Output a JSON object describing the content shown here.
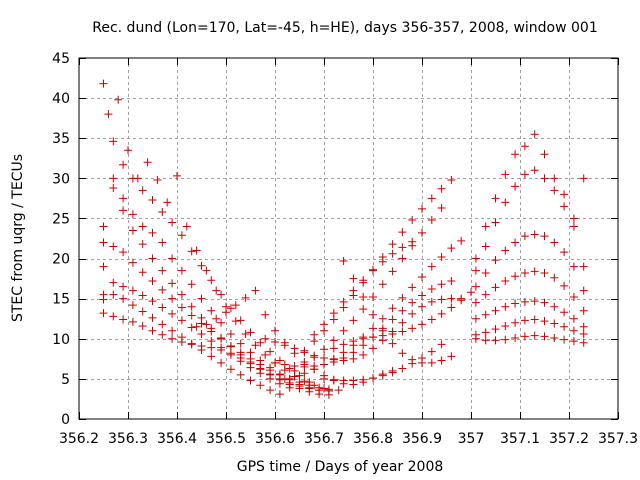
{
  "chart_data": {
    "type": "scatter",
    "title": "Rec. dund (Lon=170, Lat=-45, h=HE), days 356-357, 2008, window 001",
    "xlabel": "GPS time / Days of year 2008",
    "ylabel": "STEC from uqrg / TECUs",
    "xlim": [
      356.2,
      357.3
    ],
    "ylim": [
      0,
      45
    ],
    "xticks": [
      356.2,
      356.3,
      356.4,
      356.5,
      356.6,
      356.7,
      356.8,
      356.9,
      357.0,
      357.1,
      357.2,
      357.3
    ],
    "xtick_labels": [
      "356.2",
      "356.3",
      "356.4",
      "356.5",
      "356.6",
      "356.7",
      "356.8",
      "356.9",
      "357",
      "357.1",
      "357.2",
      "357.3"
    ],
    "yticks": [
      0,
      5,
      10,
      15,
      20,
      25,
      30,
      35,
      40,
      45
    ],
    "ytick_labels": [
      "0",
      "5",
      "10",
      "15",
      "20",
      "25",
      "30",
      "35",
      "40",
      "45"
    ],
    "grid": true,
    "marker": "+",
    "color": "#cc0000",
    "tracks": [
      {
        "x": [
          356.25,
          356.27,
          356.29,
          356.31,
          356.33,
          356.35,
          356.37,
          356.39,
          356.41,
          356.43,
          356.45,
          356.47,
          356.49,
          356.51,
          356.53,
          356.55,
          356.57,
          356.59,
          356.61,
          356.63,
          356.65,
          356.67
        ],
        "y": [
          41.8,
          34.6,
          31.7,
          30.0,
          28.5,
          27.3,
          25.8,
          24.5,
          22.9,
          20.9,
          19.1,
          17.3,
          15.5,
          13.8,
          12.3,
          10.8,
          9.5,
          8.4,
          7.3,
          6.3,
          5.4,
          4.6
        ]
      },
      {
        "x": [
          356.25,
          356.27,
          356.29,
          356.31,
          356.33,
          356.35,
          356.37,
          356.39,
          356.41,
          356.43,
          356.45,
          356.47,
          356.49,
          356.51,
          356.53,
          356.55,
          356.57,
          356.59,
          356.61,
          356.63,
          356.65,
          356.67,
          356.69,
          356.71,
          356.73
        ],
        "y": [
          24.0,
          30.0,
          27.5,
          25.5,
          24.0,
          23.2,
          22.0,
          20.0,
          18.5,
          16.8,
          15.0,
          13.5,
          12.0,
          10.6,
          9.4,
          8.3,
          7.3,
          6.4,
          5.6,
          4.9,
          4.3,
          3.9,
          3.6,
          3.5,
          3.6
        ]
      },
      {
        "x": [
          356.25,
          356.27,
          356.29,
          356.31,
          356.33,
          356.35,
          356.37,
          356.39,
          356.41,
          356.43,
          356.45,
          356.47,
          356.49,
          356.51,
          356.53,
          356.55,
          356.57,
          356.59,
          356.61,
          356.63,
          356.65,
          356.67,
          356.69,
          356.71
        ],
        "y": [
          22.0,
          28.8,
          26.0,
          23.5,
          21.8,
          20.0,
          18.5,
          16.9,
          15.5,
          14.0,
          12.6,
          11.3,
          10.1,
          9.0,
          8.0,
          7.1,
          6.3,
          5.6,
          5.0,
          4.5,
          4.1,
          3.8,
          3.6,
          3.5
        ]
      },
      {
        "x": [
          356.25,
          356.27,
          356.29,
          356.31,
          356.33,
          356.35,
          356.37,
          356.39,
          356.41,
          356.43,
          356.45,
          356.47,
          356.49,
          356.51,
          356.53,
          356.55,
          356.57,
          356.59,
          356.61,
          356.63,
          356.65,
          356.67,
          356.69,
          356.71
        ],
        "y": [
          19.0,
          21.5,
          20.8,
          19.5,
          18.3,
          17.2,
          16.1,
          15.0,
          13.9,
          12.9,
          11.9,
          10.9,
          10.0,
          9.1,
          8.3,
          7.5,
          6.8,
          6.1,
          5.5,
          5.0,
          4.6,
          4.2,
          3.9,
          3.7
        ]
      },
      {
        "x": [
          356.25,
          356.27,
          356.29,
          356.31,
          356.33,
          356.35,
          356.37,
          356.39,
          356.41,
          356.43,
          356.45,
          356.47,
          356.49,
          356.51,
          356.53,
          356.55,
          356.57,
          356.59,
          356.61,
          356.63
        ],
        "y": [
          15.5,
          17.0,
          16.5,
          16.0,
          15.4,
          14.7,
          13.9,
          13.1,
          12.3,
          11.4,
          10.6,
          9.7,
          8.9,
          8.0,
          7.2,
          6.4,
          5.7,
          5.0,
          4.4,
          3.9
        ]
      },
      {
        "x": [
          356.25,
          356.27,
          356.29,
          356.31,
          356.33,
          356.35,
          356.37,
          356.39,
          356.41,
          356.43,
          356.45,
          356.47,
          356.49,
          356.51,
          356.53,
          356.55,
          356.57,
          356.59,
          356.61
        ],
        "y": [
          14.9,
          15.5,
          15.0,
          14.2,
          13.4,
          12.6,
          11.8,
          11.0,
          10.2,
          9.4,
          8.6,
          7.8,
          7.0,
          6.2,
          5.5,
          4.8,
          4.2,
          3.6,
          3.1
        ]
      },
      {
        "x": [
          356.25,
          356.27,
          356.29,
          356.31,
          356.33,
          356.35,
          356.37,
          356.39,
          356.41,
          356.43,
          356.45,
          356.47,
          356.49,
          356.51,
          356.53,
          356.55,
          356.57,
          356.59,
          356.61,
          356.63,
          356.65,
          356.67,
          356.69,
          356.71
        ],
        "y": [
          13.2,
          12.8,
          12.4,
          12.1,
          11.6,
          11.0,
          10.5,
          10.0,
          9.6,
          9.3,
          9.1,
          8.9,
          8.6,
          8.2,
          7.6,
          6.9,
          6.2,
          5.5,
          4.9,
          4.3,
          3.8,
          3.4,
          3.1,
          3.0
        ]
      },
      {
        "x": [
          356.26,
          356.28,
          356.3,
          356.32,
          356.34,
          356.36,
          356.38,
          356.4,
          356.42,
          356.44,
          356.46,
          356.48,
          356.5,
          356.52,
          356.54,
          356.56,
          356.58,
          356.6,
          356.62,
          356.64,
          356.66,
          356.68,
          356.7
        ],
        "y": [
          38.0,
          39.8,
          33.5,
          30.0,
          32.0,
          29.8,
          27.0,
          30.3,
          24.0,
          21.0,
          18.5,
          16.0,
          14.0,
          12.2,
          10.6,
          9.2,
          8.0,
          7.0,
          6.1,
          5.3,
          4.7,
          4.2,
          3.8
        ]
      },
      {
        "x": [
          356.44,
          356.46,
          356.48,
          356.5,
          356.52,
          356.54,
          356.56,
          356.58,
          356.6,
          356.62,
          356.64,
          356.66,
          356.68,
          356.7,
          356.72,
          356.74,
          356.76,
          356.78,
          356.8,
          356.82,
          356.84
        ],
        "y": [
          11.5,
          11.8,
          12.5,
          13.3,
          14.2,
          15.1,
          16.0,
          13.0,
          11.0,
          9.5,
          8.2,
          7.1,
          6.2,
          5.4,
          4.8,
          4.4,
          4.3,
          4.6,
          5.1,
          5.6,
          6.0
        ]
      },
      {
        "x": [
          356.58,
          356.6,
          356.62,
          356.64,
          356.66,
          356.68,
          356.7,
          356.72,
          356.74,
          356.76,
          356.78,
          356.8,
          356.82,
          356.84,
          356.86,
          356.88,
          356.9,
          356.92,
          356.94,
          356.96,
          356.98
        ],
        "y": [
          10.0,
          9.6,
          9.2,
          8.8,
          8.3,
          7.9,
          7.6,
          7.4,
          7.3,
          7.5,
          8.0,
          8.8,
          9.8,
          10.9,
          12.0,
          13.1,
          14.0,
          14.6,
          14.9,
          15.0,
          15.0
        ]
      },
      {
        "x": [
          356.6,
          356.62,
          356.64,
          356.66,
          356.68,
          356.7,
          356.72,
          356.74,
          356.76,
          356.78,
          356.8,
          356.82,
          356.84,
          356.86,
          356.88,
          356.9,
          356.92,
          356.94,
          356.96
        ],
        "y": [
          7.0,
          6.8,
          6.6,
          6.5,
          6.6,
          6.8,
          7.1,
          7.6,
          8.3,
          9.2,
          10.2,
          11.3,
          12.4,
          13.5,
          14.5,
          15.4,
          16.2,
          16.8,
          17.2
        ]
      },
      {
        "x": [
          356.62,
          356.64,
          356.66,
          356.68,
          356.7,
          356.72,
          356.74,
          356.76,
          356.78,
          356.8,
          356.82,
          356.84,
          356.86,
          356.88,
          356.9,
          356.92,
          356.94,
          356.96,
          356.98
        ],
        "y": [
          5.0,
          5.3,
          5.7,
          6.2,
          6.8,
          7.5,
          8.3,
          9.2,
          10.2,
          11.3,
          12.5,
          13.8,
          15.1,
          16.4,
          17.7,
          19.0,
          20.2,
          21.3,
          22.2
        ]
      },
      {
        "x": [
          356.64,
          356.66,
          356.68,
          356.7,
          356.72,
          356.74,
          356.76,
          356.78,
          356.8,
          356.82,
          356.84,
          356.86,
          356.88,
          356.9,
          356.92,
          356.94
        ],
        "y": [
          6.0,
          6.8,
          7.7,
          8.7,
          9.8,
          11.0,
          12.3,
          13.7,
          15.2,
          16.8,
          18.4,
          20.0,
          21.6,
          23.2,
          24.8,
          26.3
        ]
      },
      {
        "x": [
          356.66,
          356.68,
          356.7,
          356.72,
          356.74,
          356.76,
          356.78,
          356.8,
          356.82,
          356.84,
          356.86,
          356.88,
          356.9,
          356.92,
          356.94,
          356.96
        ],
        "y": [
          8.5,
          9.7,
          11.0,
          12.4,
          13.9,
          15.4,
          17.0,
          18.6,
          20.2,
          21.8,
          23.3,
          24.8,
          26.2,
          27.5,
          28.7,
          29.8
        ]
      },
      {
        "x": [
          356.68,
          356.7,
          356.72,
          356.74,
          356.76,
          356.78,
          356.8,
          356.82,
          356.84,
          356.86,
          356.88
        ],
        "y": [
          10.5,
          11.8,
          13.2,
          14.6,
          16.0,
          17.3,
          18.5,
          19.6,
          20.6,
          21.4,
          22.1
        ]
      },
      {
        "x": [
          356.7,
          356.72,
          356.74,
          356.76,
          356.78,
          356.8,
          356.82,
          356.84,
          356.86,
          356.88,
          356.9,
          356.92,
          356.94
        ],
        "y": [
          5.0,
          4.9,
          4.8,
          4.8,
          4.9,
          5.1,
          5.4,
          5.8,
          6.3,
          6.9,
          7.6,
          8.4,
          9.3
        ]
      },
      {
        "x": [
          356.72,
          356.74,
          356.76,
          356.78,
          356.8,
          356.82,
          356.84,
          356.86,
          356.88,
          356.9,
          356.92,
          356.94,
          356.96,
          356.98,
          357.0
        ],
        "y": [
          8.8,
          9.3,
          9.7,
          10.0,
          10.2,
          10.4,
          10.6,
          10.9,
          11.3,
          11.8,
          12.4,
          13.1,
          13.9,
          14.8,
          15.8
        ]
      },
      {
        "x": [
          356.74,
          356.76,
          356.78,
          356.8,
          356.82,
          356.84,
          356.86,
          356.88,
          356.9,
          356.92,
          356.94,
          356.96
        ],
        "y": [
          19.7,
          17.5,
          15.2,
          13.0,
          11.0,
          9.4,
          8.2,
          7.4,
          7.0,
          7.0,
          7.3,
          7.8
        ]
      },
      {
        "x": [
          357.01,
          357.03,
          357.05,
          357.07,
          357.09,
          357.11,
          357.13,
          357.15,
          357.17,
          357.19,
          357.21,
          357.23
        ],
        "y": [
          20.0,
          24.0,
          27.5,
          30.5,
          33.0,
          34.0,
          35.5,
          33.0,
          30.0,
          28.0,
          25.0,
          30.0
        ]
      },
      {
        "x": [
          357.01,
          357.03,
          357.05,
          357.07,
          357.09,
          357.11,
          357.13,
          357.15,
          357.17,
          357.19,
          357.21,
          357.23
        ],
        "y": [
          18.5,
          21.5,
          24.5,
          27.0,
          29.0,
          30.5,
          31.0,
          30.0,
          28.5,
          26.5,
          24.0,
          19.0
        ]
      },
      {
        "x": [
          357.01,
          357.03,
          357.05,
          357.07,
          357.09,
          357.11,
          357.13,
          357.15,
          357.17,
          357.19,
          357.21,
          357.23
        ],
        "y": [
          16.5,
          18.2,
          19.8,
          21.0,
          22.0,
          22.8,
          23.0,
          22.8,
          22.0,
          20.8,
          19.0,
          16.0
        ]
      },
      {
        "x": [
          357.01,
          357.03,
          357.05,
          357.07,
          357.09,
          357.11,
          357.13,
          357.15,
          357.17,
          357.19,
          357.21,
          357.23
        ],
        "y": [
          14.5,
          15.5,
          16.4,
          17.2,
          17.8,
          18.2,
          18.4,
          18.2,
          17.6,
          16.6,
          15.2,
          13.5
        ]
      },
      {
        "x": [
          357.01,
          357.03,
          357.05,
          357.07,
          357.09,
          357.11,
          357.13,
          357.15,
          357.17,
          357.19,
          357.21,
          357.23
        ],
        "y": [
          12.5,
          13.0,
          13.5,
          14.0,
          14.4,
          14.6,
          14.7,
          14.5,
          14.0,
          13.3,
          12.5,
          11.5
        ]
      },
      {
        "x": [
          357.01,
          357.03,
          357.05,
          357.07,
          357.09,
          357.11,
          357.13,
          357.15,
          357.17,
          357.19,
          357.21,
          357.23
        ],
        "y": [
          10.5,
          10.8,
          11.2,
          11.6,
          12.0,
          12.3,
          12.4,
          12.2,
          11.9,
          11.5,
          11.0,
          10.6
        ]
      },
      {
        "x": [
          357.01,
          357.03,
          357.05,
          357.07,
          357.09,
          357.11,
          357.13,
          357.15,
          357.17,
          357.19,
          357.21,
          357.23
        ],
        "y": [
          10.0,
          9.8,
          9.8,
          9.9,
          10.1,
          10.3,
          10.4,
          10.3,
          10.1,
          9.9,
          9.7,
          9.5
        ]
      }
    ]
  }
}
